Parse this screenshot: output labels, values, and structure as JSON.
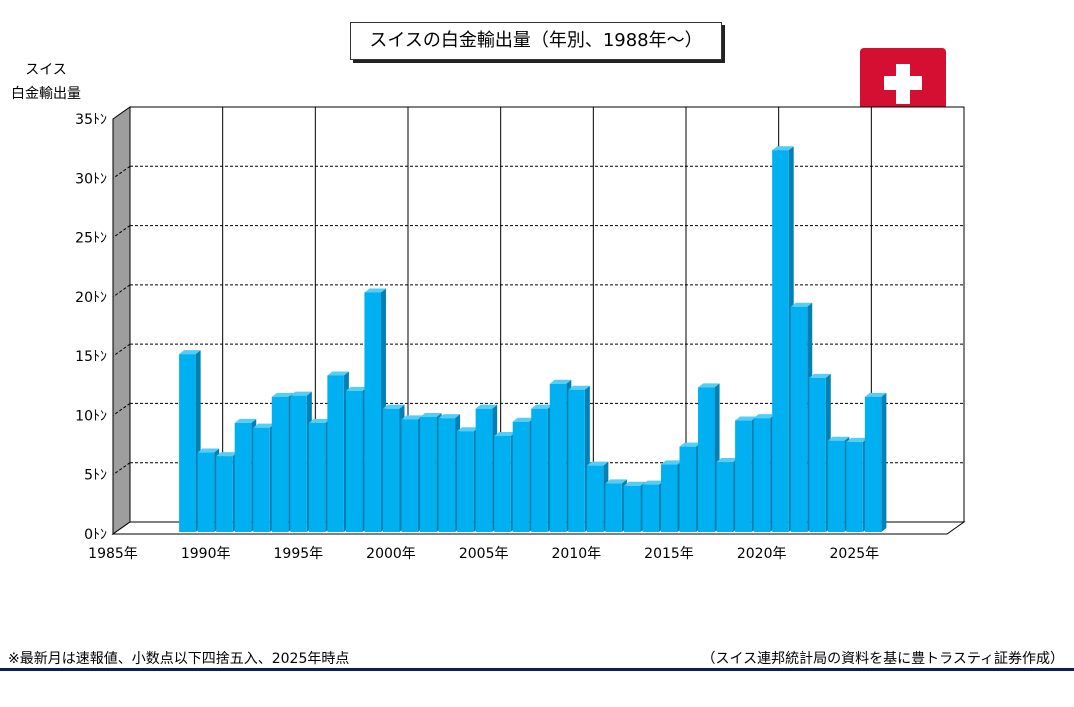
{
  "title": "スイスの白金輸出量（年別、1988年～）",
  "ylabel_lines": [
    "スイス",
    "白金輸出量"
  ],
  "footnote": "※最新月は速報値、小数点以下四捨五入、2025年時点",
  "source": "（スイス連邦統計局の資料を基に豊トラスティ証券作成）",
  "flag_icon": "swiss-flag-icon",
  "colors": {
    "bar_front": "#00b0f0",
    "bar_side": "#0080b4",
    "bar_top": "#55cdf5",
    "wall": "#9e9e9e",
    "rule": "#0b1f5c",
    "flag_red": "#d50f32"
  },
  "chart_data": {
    "type": "bar",
    "title": "スイスの白金輸出量（年別、1988年～）",
    "ylabel": "スイス 白金輸出量",
    "ylim": [
      0,
      35
    ],
    "ytick_values": [
      0,
      5,
      10,
      15,
      20,
      25,
      30,
      35
    ],
    "ytick_labels": [
      "0ﾄﾝ",
      "5ﾄﾝ",
      "10ﾄﾝ",
      "15ﾄﾝ",
      "20ﾄﾝ",
      "25ﾄﾝ",
      "30ﾄﾝ",
      "35ﾄﾝ"
    ],
    "xlim": [
      1985,
      2030
    ],
    "xtick_values": [
      1985,
      1990,
      1995,
      2000,
      2005,
      2010,
      2015,
      2020,
      2025
    ],
    "xtick_labels": [
      "1985年",
      "1990年",
      "1995年",
      "2000年",
      "2005年",
      "2010年",
      "2015年",
      "2020年",
      "2025年"
    ],
    "grid": true,
    "years": [
      1988,
      1989,
      1990,
      1991,
      1992,
      1993,
      1994,
      1995,
      1996,
      1997,
      1998,
      1999,
      2000,
      2001,
      2002,
      2003,
      2004,
      2005,
      2006,
      2007,
      2008,
      2009,
      2010,
      2011,
      2012,
      2013,
      2014,
      2015,
      2016,
      2017,
      2018,
      2019,
      2020,
      2021,
      2022,
      2023,
      2024,
      2025
    ],
    "values": [
      15,
      6.7,
      6.4,
      9.2,
      8.8,
      11.4,
      11.5,
      9.2,
      13.2,
      11.9,
      20.2,
      10.4,
      9.5,
      9.7,
      9.6,
      8.5,
      10.4,
      8.1,
      9.3,
      10.4,
      12.5,
      12,
      5.6,
      4.1,
      3.9,
      4,
      5.7,
      7.2,
      12.2,
      5.9,
      9.4,
      9.6,
      32.2,
      19,
      13,
      7.7,
      7.6,
      11.4
    ]
  }
}
